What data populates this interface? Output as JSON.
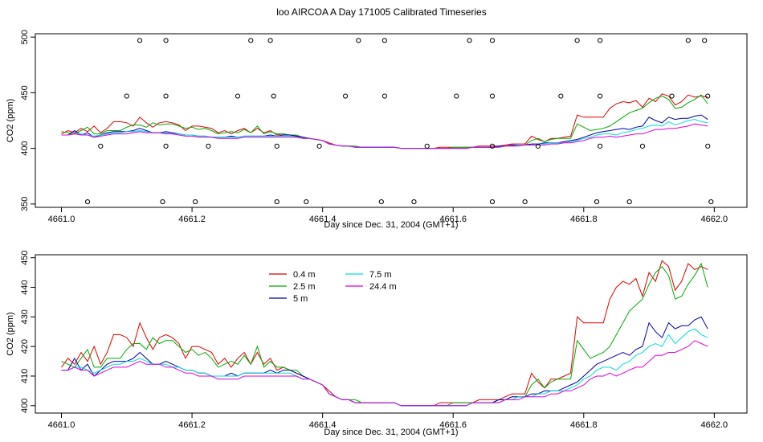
{
  "title": "loo AIRCOA A  Day 171005  Calibrated Timeseries",
  "colors": {
    "0.4 m": "#dd0000",
    "2.5 m": "#00aa00",
    "5 m": "#0000aa",
    "7.5 m": "#00dddd",
    "24.4 m": "#dd00dd"
  },
  "chart_data": [
    {
      "type": "scatter",
      "ylabel": "CO2 (ppm)",
      "xlabel": "Day since Dec. 31, 2004 (GMT+1)",
      "xlim": [
        4660.96,
        4662.05
      ],
      "ylim": [
        347,
        503
      ],
      "xticks": [
        "4661.0",
        "4661.2",
        "4661.4",
        "4661.6",
        "4661.8",
        "4662.0"
      ],
      "yticks": [
        "350",
        "400",
        "450",
        "500"
      ],
      "xtick_values": [
        4661.0,
        4661.2,
        4661.4,
        4661.6,
        4661.8,
        4662.0
      ],
      "ytick_values": [
        350,
        400,
        450,
        500
      ],
      "legend": "none",
      "outlier_points": [
        [
          4661.04,
          352
        ],
        [
          4661.06,
          402
        ],
        [
          4661.1,
          447
        ],
        [
          4661.12,
          497
        ],
        [
          4661.155,
          352
        ],
        [
          4661.16,
          402
        ],
        [
          4661.16,
          447
        ],
        [
          4661.16,
          497
        ],
        [
          4661.205,
          352
        ],
        [
          4661.225,
          402
        ],
        [
          4661.27,
          447
        ],
        [
          4661.29,
          497
        ],
        [
          4661.32,
          497
        ],
        [
          4661.325,
          447
        ],
        [
          4661.33,
          402
        ],
        [
          4661.33,
          352
        ],
        [
          4661.375,
          352
        ],
        [
          4661.395,
          402
        ],
        [
          4661.435,
          447
        ],
        [
          4661.455,
          497
        ],
        [
          4661.49,
          352
        ],
        [
          4661.495,
          447
        ],
        [
          4661.495,
          497
        ],
        [
          4661.54,
          352
        ],
        [
          4661.56,
          402
        ],
        [
          4661.605,
          447
        ],
        [
          4661.625,
          497
        ],
        [
          4661.66,
          352
        ],
        [
          4661.66,
          402
        ],
        [
          4661.66,
          447
        ],
        [
          4661.66,
          497
        ],
        [
          4661.71,
          352
        ],
        [
          4661.73,
          402
        ],
        [
          4661.765,
          447
        ],
        [
          4661.79,
          497
        ],
        [
          4661.82,
          352
        ],
        [
          4661.825,
          402
        ],
        [
          4661.825,
          447
        ],
        [
          4661.825,
          497
        ],
        [
          4661.87,
          352
        ],
        [
          4661.89,
          402
        ],
        [
          4661.935,
          447
        ],
        [
          4661.96,
          497
        ],
        [
          4661.985,
          497
        ],
        [
          4661.99,
          447
        ],
        [
          4661.99,
          402
        ],
        [
          4661.995,
          352
        ]
      ],
      "x": [
        4661.0,
        4661.01,
        4661.02,
        4661.03,
        4661.04,
        4661.05,
        4661.06,
        4661.07,
        4661.08,
        4661.09,
        4661.1,
        4661.11,
        4661.12,
        4661.13,
        4661.14,
        4661.15,
        4661.16,
        4661.17,
        4661.18,
        4661.19,
        4661.2,
        4661.21,
        4661.22,
        4661.23,
        4661.24,
        4661.25,
        4661.26,
        4661.27,
        4661.28,
        4661.29,
        4661.3,
        4661.31,
        4661.32,
        4661.33,
        4661.34,
        4661.35,
        4661.36,
        4661.37,
        4661.38,
        4661.39,
        4661.4,
        4661.41,
        4661.42,
        4661.43,
        4661.44,
        4661.45,
        4661.46,
        4661.47,
        4661.48,
        4661.49,
        4661.5,
        4661.51,
        4661.52,
        4661.53,
        4661.54,
        4661.55,
        4661.56,
        4661.57,
        4661.58,
        4661.59,
        4661.6,
        4661.61,
        4661.62,
        4661.63,
        4661.64,
        4661.65,
        4661.66,
        4661.67,
        4661.68,
        4661.69,
        4661.7,
        4661.71,
        4661.72,
        4661.73,
        4661.74,
        4661.75,
        4661.76,
        4661.77,
        4661.78,
        4661.79,
        4661.8,
        4661.81,
        4661.82,
        4661.83,
        4661.84,
        4661.85,
        4661.86,
        4661.87,
        4661.88,
        4661.89,
        4661.9,
        4661.91,
        4661.92,
        4661.93,
        4661.94,
        4661.95,
        4661.96,
        4661.97,
        4661.98,
        4661.99
      ],
      "series": [
        {
          "name": "0.4 m",
          "values": [
            413,
            416,
            414,
            418,
            415,
            420,
            414,
            418,
            424,
            424,
            423,
            420,
            428,
            423,
            419,
            423,
            424,
            423,
            421,
            416,
            420,
            420,
            419,
            418,
            414,
            416,
            413,
            416,
            418,
            414,
            418,
            414,
            416,
            412,
            413,
            412,
            411,
            410,
            409,
            408,
            407,
            405,
            403,
            402,
            402,
            401,
            401,
            401,
            401,
            401,
            401,
            401,
            400,
            400,
            400,
            400,
            400,
            400,
            401,
            401,
            401,
            401,
            401,
            401,
            402,
            402,
            402,
            402,
            403,
            404,
            404,
            404,
            411,
            408,
            406,
            409,
            409,
            410,
            411,
            430,
            428,
            428,
            428,
            428,
            436,
            440,
            442,
            441,
            443,
            437,
            445,
            442,
            449,
            447,
            439,
            442,
            448,
            446,
            447,
            446
          ]
        },
        {
          "name": "2.5 m",
          "values": [
            415,
            414,
            413,
            416,
            419,
            413,
            413,
            416,
            416,
            416,
            419,
            421,
            421,
            419,
            423,
            421,
            422,
            422,
            420,
            418,
            419,
            417,
            418,
            416,
            413,
            414,
            415,
            414,
            417,
            414,
            420,
            413,
            415,
            413,
            413,
            412,
            412,
            410,
            409,
            408,
            407,
            404,
            403,
            402,
            402,
            402,
            401,
            401,
            401,
            401,
            401,
            401,
            400,
            400,
            400,
            400,
            400,
            400,
            400,
            400,
            401,
            401,
            401,
            401,
            401,
            401,
            401,
            402,
            402,
            403,
            403,
            403,
            407,
            409,
            406,
            408,
            409,
            409,
            409,
            422,
            419,
            416,
            417,
            418,
            420,
            424,
            428,
            432,
            434,
            436,
            441,
            445,
            447,
            444,
            436,
            437,
            441,
            444,
            448,
            440
          ]
        },
        {
          "name": "5 m",
          "values": [
            412,
            412,
            416,
            412,
            414,
            410,
            412,
            414,
            415,
            415,
            415,
            416,
            418,
            416,
            414,
            414,
            415,
            414,
            413,
            412,
            412,
            411,
            411,
            410,
            410,
            410,
            411,
            410,
            411,
            411,
            411,
            411,
            412,
            411,
            412,
            412,
            411,
            410,
            409,
            408,
            407,
            404,
            403,
            402,
            402,
            401,
            401,
            401,
            401,
            401,
            401,
            401,
            400,
            400,
            400,
            400,
            400,
            400,
            400,
            400,
            400,
            400,
            400,
            401,
            401,
            401,
            401,
            402,
            402,
            403,
            403,
            403,
            404,
            404,
            405,
            405,
            405,
            406,
            407,
            408,
            410,
            412,
            414,
            415,
            416,
            417,
            418,
            417,
            419,
            420,
            428,
            425,
            423,
            428,
            426,
            427,
            427,
            429,
            430,
            426
          ]
        },
        {
          "name": "7.5 m",
          "values": [
            412,
            412,
            413,
            413,
            412,
            411,
            412,
            413,
            414,
            414,
            415,
            415,
            416,
            415,
            414,
            414,
            414,
            413,
            413,
            412,
            412,
            411,
            411,
            410,
            410,
            410,
            410,
            410,
            411,
            411,
            411,
            411,
            411,
            411,
            411,
            411,
            410,
            409,
            409,
            408,
            407,
            404,
            403,
            402,
            402,
            401,
            401,
            401,
            401,
            401,
            401,
            401,
            400,
            400,
            400,
            400,
            400,
            400,
            400,
            400,
            400,
            400,
            400,
            401,
            401,
            401,
            401,
            401,
            402,
            402,
            403,
            403,
            403,
            404,
            404,
            405,
            405,
            405,
            406,
            407,
            409,
            410,
            412,
            413,
            413,
            412,
            414,
            415,
            417,
            418,
            420,
            421,
            420,
            424,
            421,
            423,
            425,
            426,
            424,
            423
          ]
        },
        {
          "name": "24.4 m",
          "values": [
            412,
            412,
            413,
            412,
            412,
            410,
            411,
            412,
            413,
            413,
            413,
            414,
            415,
            414,
            414,
            414,
            413,
            413,
            412,
            411,
            411,
            410,
            410,
            410,
            409,
            409,
            409,
            409,
            410,
            410,
            410,
            410,
            410,
            410,
            410,
            410,
            410,
            409,
            409,
            408,
            407,
            404,
            403,
            402,
            402,
            401,
            401,
            401,
            401,
            401,
            401,
            401,
            400,
            400,
            400,
            400,
            400,
            400,
            400,
            400,
            400,
            400,
            400,
            401,
            401,
            401,
            401,
            401,
            402,
            402,
            402,
            403,
            403,
            403,
            403,
            404,
            404,
            405,
            405,
            406,
            407,
            409,
            410,
            410,
            411,
            410,
            411,
            412,
            413,
            413,
            415,
            417,
            417,
            418,
            418,
            419,
            420,
            422,
            421,
            420
          ]
        }
      ]
    },
    {
      "type": "line",
      "ylabel": "CO2 (ppm)",
      "xlabel": "Day since Dec. 31, 2004 (GMT+1)",
      "xlim": [
        4660.96,
        4662.05
      ],
      "ylim": [
        397.5,
        451
      ],
      "xticks": [
        "4661.0",
        "4661.2",
        "4661.4",
        "4661.6",
        "4661.8",
        "4662.0"
      ],
      "yticks": [
        "400",
        "410",
        "420",
        "430",
        "440",
        "450"
      ],
      "xtick_values": [
        4661.0,
        4661.2,
        4661.4,
        4661.6,
        4661.8,
        4662.0
      ],
      "ytick_values": [
        400,
        410,
        420,
        430,
        440,
        450
      ],
      "legend": "top-left",
      "legend_entries": [
        "0.4 m",
        "2.5 m",
        "5 m",
        "7.5 m",
        "24.4 m"
      ],
      "series_ref": "same as chart_data[0].series"
    }
  ]
}
